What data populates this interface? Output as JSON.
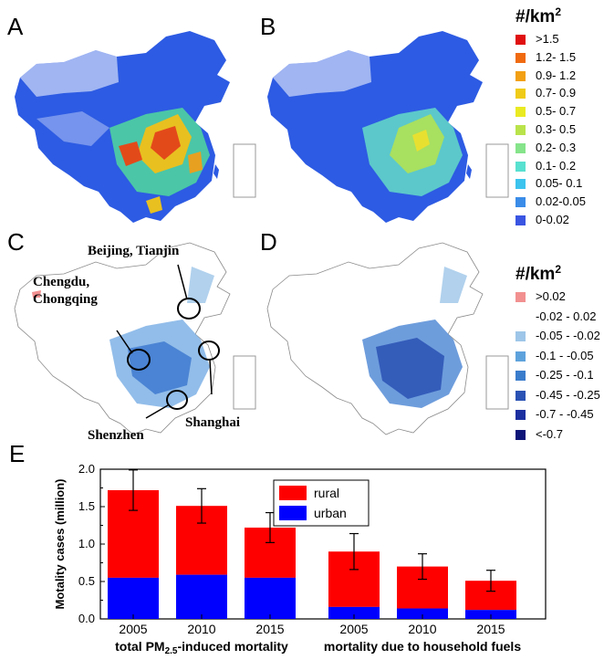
{
  "panels": {
    "a": "A",
    "b": "B",
    "c": "C",
    "d": "D",
    "e": "E"
  },
  "legend_top": {
    "title": "#/km",
    "title_sup": "2",
    "items": [
      {
        "label": ">1.5",
        "color": "#e01010"
      },
      {
        "label": "1.2-  1.5",
        "color": "#f06a10"
      },
      {
        "label": "0.9-  1.2",
        "color": "#f2a014"
      },
      {
        "label": "0.7-  0.9",
        "color": "#f0cc18"
      },
      {
        "label": "0.5-  0.7",
        "color": "#eaea22"
      },
      {
        "label": "0.3-  0.5",
        "color": "#b9e34b"
      },
      {
        "label": "0.2-  0.3",
        "color": "#86e48a"
      },
      {
        "label": "0.1-  0.2",
        "color": "#58e0d0"
      },
      {
        "label": "0.05-  0.1",
        "color": "#3cc4ee"
      },
      {
        "label": "0.02-0.05",
        "color": "#3a8ce8"
      },
      {
        "label": "0-0.02",
        "color": "#3a55e2"
      }
    ]
  },
  "legend_bottom": {
    "title": "#/km",
    "title_sup": "2",
    "items": [
      {
        "label": ">0.02",
        "color": "#f29090"
      },
      {
        "label": "-0.02 - 0.02",
        "color": "#ffffff"
      },
      {
        "label": "-0.05 - -0.02",
        "color": "#9ec6e8"
      },
      {
        "label": "-0.1 - -0.05",
        "color": "#5ea2dc"
      },
      {
        "label": "-0.25 - -0.1",
        "color": "#3a7ccc"
      },
      {
        "label": "-0.45 - -0.25",
        "color": "#2a52b4"
      },
      {
        "label": "-0.7 - -0.45",
        "color": "#1c2fa0"
      },
      {
        "label": "<-0.7",
        "color": "#0c1478"
      }
    ]
  },
  "annotations": {
    "beijing": "Beijing, Tianjin",
    "chengdu_1": "Chengdu,",
    "chengdu_2": "Chongqing",
    "shenzhen": "Shenzhen",
    "shanghai": "Shanghai"
  },
  "colors": {
    "rural": "#ff0000",
    "urban": "#0000ff",
    "map_panel_a_base": "#2d5be3",
    "map_hotspot": "#e8c020"
  },
  "chart_data": {
    "type": "bar",
    "stacked": true,
    "ylabel": "Motality cases (million)",
    "ylim": [
      0,
      2.0
    ],
    "yticks": [
      "0.0",
      "0.5",
      "1.0",
      "1.5",
      "2.0"
    ],
    "legend": {
      "position": "top-center",
      "items": [
        "rural",
        "urban"
      ]
    },
    "groups": [
      {
        "label": "total PM",
        "label_sub": "2.5",
        "label_rest": "-induced mortality",
        "categories": [
          "2005",
          "2010",
          "2015"
        ],
        "urban": [
          0.55,
          0.59,
          0.55
        ],
        "total": [
          1.72,
          1.51,
          1.22
        ],
        "error": [
          0.27,
          0.23,
          0.2
        ]
      },
      {
        "label": "mortality due to household fuels",
        "categories": [
          "2005",
          "2010",
          "2015"
        ],
        "urban": [
          0.16,
          0.14,
          0.12
        ],
        "total": [
          0.9,
          0.7,
          0.51
        ],
        "error": [
          0.24,
          0.17,
          0.14
        ]
      }
    ],
    "series": [
      {
        "name": "rural",
        "values": [
          1.17,
          0.92,
          0.67,
          0.74,
          0.56,
          0.39
        ]
      },
      {
        "name": "urban",
        "values": [
          0.55,
          0.59,
          0.55,
          0.16,
          0.14,
          0.12
        ]
      }
    ]
  }
}
